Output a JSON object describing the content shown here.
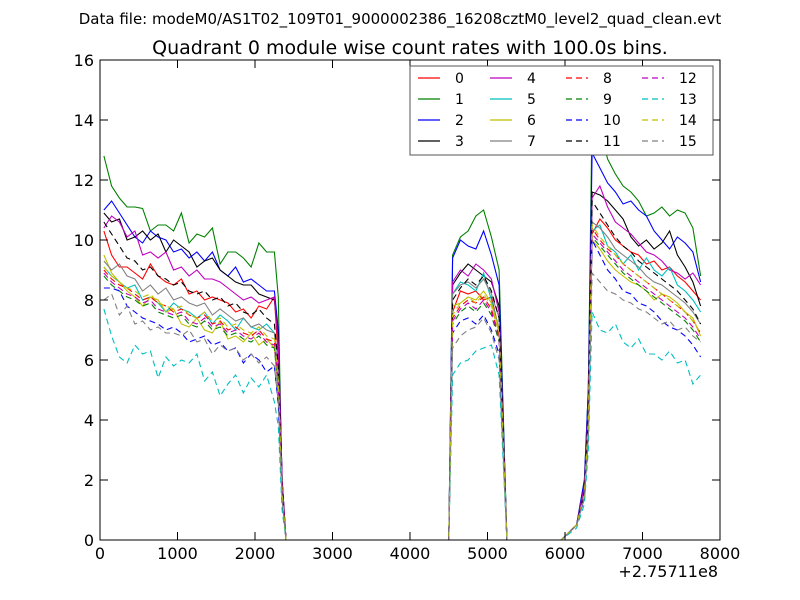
{
  "figure": {
    "suptitle": "Data file: modeM0/AS1T02_109T01_9000002386_16208cztM0_level2_quad_clean.evt"
  },
  "chart_data": {
    "type": "line",
    "title": "Quadrant 0 module wise count rates with 100.0s bins.",
    "xlabel": "",
    "ylabel": "",
    "x_offset_label": "+2.75711e8",
    "xlim": [
      0,
      8000
    ],
    "ylim": [
      0,
      16
    ],
    "xticks": [
      0,
      1000,
      2000,
      3000,
      4000,
      5000,
      6000,
      7000,
      8000
    ],
    "yticks": [
      0,
      2,
      4,
      6,
      8,
      10,
      12,
      14,
      16
    ],
    "legend_position": "top-right",
    "legend_columns": 4,
    "x": [
      50,
      150,
      250,
      350,
      450,
      550,
      650,
      750,
      850,
      950,
      1050,
      1150,
      1250,
      1350,
      1450,
      1550,
      1650,
      1750,
      1850,
      1950,
      2050,
      2150,
      2250,
      2300,
      2350,
      2400,
      2500,
      2700,
      2900,
      3100,
      3300,
      3500,
      3700,
      3900,
      4100,
      4300,
      4450,
      4500,
      4550,
      4650,
      4750,
      4850,
      4950,
      5050,
      5150,
      5250,
      5350,
      5550,
      5750,
      5950,
      6150,
      6250,
      6300,
      6350,
      6450,
      6550,
      6650,
      6750,
      6850,
      6950,
      7050,
      7150,
      7250,
      7350,
      7450,
      7550,
      7650,
      7750
    ],
    "series": [
      {
        "name": "0",
        "color": "#ff0000",
        "dash": "solid",
        "values": [
          10.3,
          9.5,
          9.1,
          9.1,
          8.9,
          8.7,
          9.2,
          8.8,
          8.6,
          8.5,
          8.7,
          8.2,
          8.3,
          8.0,
          8.1,
          8.0,
          7.9,
          7.6,
          7.7,
          7.4,
          7.8,
          7.7,
          8.1,
          6.0,
          2.0,
          0,
          0,
          0,
          0,
          0,
          0,
          0,
          0,
          0,
          0,
          0,
          0,
          0,
          7.6,
          8.3,
          8.2,
          8.3,
          8.0,
          8.1,
          7.0,
          0,
          0,
          0,
          0,
          0,
          0.5,
          1.5,
          4.0,
          10.2,
          10.7,
          10.4,
          10.0,
          9.8,
          9.6,
          9.5,
          9.2,
          9.3,
          9.0,
          9.1,
          8.8,
          8.6,
          8.3,
          8.0
        ]
      },
      {
        "name": "1",
        "color": "#008000",
        "dash": "solid",
        "values": [
          12.8,
          11.8,
          11.4,
          11.1,
          11.1,
          11.05,
          10.3,
          10.5,
          10.5,
          10.3,
          10.9,
          9.9,
          10.2,
          10.1,
          10.4,
          9.2,
          9.6,
          9.6,
          9.4,
          9.1,
          9.9,
          9.6,
          9.6,
          8.1,
          1.5,
          0,
          0,
          0,
          0,
          0,
          0,
          0,
          0,
          0,
          0,
          0,
          0,
          0,
          9.5,
          10.1,
          10.3,
          10.8,
          11.0,
          10.1,
          9.0,
          0,
          0,
          0,
          0,
          0,
          0.5,
          2.0,
          5.0,
          14.2,
          13.7,
          12.7,
          12.2,
          11.8,
          11.6,
          11.3,
          10.8,
          10.9,
          11.1,
          10.8,
          11.0,
          10.9,
          10.4,
          8.8
        ]
      },
      {
        "name": "2",
        "color": "#0000ff",
        "dash": "solid",
        "values": [
          11.0,
          11.3,
          10.9,
          10.5,
          10.1,
          9.9,
          10.3,
          10.1,
          10.0,
          9.6,
          9.7,
          9.4,
          9.6,
          9.3,
          9.6,
          9.0,
          8.8,
          9.1,
          8.6,
          8.7,
          8.5,
          8.3,
          8.3,
          7.0,
          2.0,
          0,
          0,
          0,
          0,
          0,
          0,
          0,
          0,
          0,
          0,
          0,
          0,
          0,
          9.4,
          10.0,
          9.8,
          9.7,
          10.3,
          9.5,
          8.5,
          0,
          0,
          0,
          0,
          0,
          0.5,
          2.0,
          5.0,
          12.9,
          12.4,
          11.9,
          11.6,
          11.2,
          11.3,
          11.0,
          10.8,
          10.3,
          10.0,
          9.7,
          10.1,
          9.9,
          9.6,
          8.6
        ]
      },
      {
        "name": "3",
        "color": "#000000",
        "dash": "solid",
        "values": [
          10.9,
          10.6,
          10.7,
          10.0,
          10.1,
          10.3,
          10.0,
          10.2,
          9.6,
          10.0,
          9.8,
          9.6,
          9.1,
          9.3,
          9.4,
          9.0,
          8.8,
          8.6,
          8.5,
          8.5,
          8.2,
          8.1,
          8.0,
          6.8,
          2.0,
          0,
          0,
          0,
          0,
          0,
          0,
          0,
          0,
          0,
          0,
          0,
          0,
          0,
          8.5,
          8.9,
          9.2,
          9.0,
          8.8,
          8.6,
          7.8,
          0,
          0,
          0,
          0,
          0,
          0.5,
          1.8,
          4.5,
          11.6,
          11.5,
          11.3,
          11.0,
          10.7,
          10.1,
          9.8,
          10.0,
          9.7,
          9.9,
          10.3,
          9.5,
          9.1,
          8.6,
          7.8
        ]
      },
      {
        "name": "4",
        "color": "#bf00bf",
        "dash": "solid",
        "values": [
          10.4,
          10.8,
          10.6,
          10.1,
          10.3,
          9.5,
          9.6,
          9.4,
          9.6,
          9.0,
          9.1,
          8.8,
          9.0,
          8.7,
          8.7,
          8.6,
          8.4,
          8.2,
          8.0,
          8.1,
          7.9,
          8.0,
          8.1,
          6.5,
          2.0,
          0,
          0,
          0,
          0,
          0,
          0,
          0,
          0,
          0,
          0,
          0,
          0,
          0,
          8.6,
          9.0,
          8.8,
          9.2,
          9.0,
          8.7,
          7.6,
          0,
          0,
          0,
          0,
          0,
          0.5,
          1.8,
          4.5,
          11.4,
          11.8,
          11.1,
          10.6,
          10.4,
          10.2,
          9.9,
          9.6,
          9.5,
          9.3,
          9.0,
          8.9,
          8.7,
          8.9,
          8.5
        ]
      },
      {
        "name": "5",
        "color": "#00bfbf",
        "dash": "solid",
        "values": [
          9.1,
          8.8,
          8.6,
          8.4,
          8.5,
          8.0,
          8.1,
          7.9,
          7.6,
          7.9,
          7.7,
          7.6,
          7.4,
          7.6,
          7.2,
          7.5,
          7.3,
          7.0,
          7.4,
          7.1,
          7.0,
          7.2,
          6.9,
          5.5,
          1.5,
          0,
          0,
          0,
          0,
          0,
          0,
          0,
          0,
          0,
          0,
          0,
          0,
          0,
          8.2,
          8.6,
          8.5,
          8.3,
          8.9,
          8.0,
          7.0,
          0,
          0,
          0,
          0,
          0,
          0.5,
          1.5,
          4.0,
          10.3,
          10.5,
          9.8,
          9.6,
          9.2,
          9.5,
          9.0,
          9.4,
          9.0,
          8.8,
          9.1,
          8.5,
          8.3,
          8.0,
          7.6
        ]
      },
      {
        "name": "6",
        "color": "#bfbf00",
        "dash": "solid",
        "values": [
          9.5,
          8.9,
          8.6,
          8.3,
          8.1,
          7.8,
          8.1,
          8.0,
          7.6,
          7.7,
          7.2,
          7.1,
          7.4,
          7.0,
          6.9,
          7.3,
          6.7,
          6.8,
          6.6,
          6.9,
          6.5,
          6.7,
          6.4,
          5.0,
          1.5,
          0,
          0,
          0,
          0,
          0,
          0,
          0,
          0,
          0,
          0,
          0,
          0,
          0,
          7.8,
          7.9,
          8.1,
          8.0,
          8.3,
          7.9,
          7.0,
          0,
          0,
          0,
          0,
          0,
          0.5,
          1.5,
          3.8,
          10.0,
          9.7,
          9.3,
          9.0,
          8.8,
          8.6,
          8.5,
          8.3,
          8.0,
          8.2,
          8.1,
          7.9,
          7.6,
          7.4,
          6.8
        ]
      },
      {
        "name": "7",
        "color": "#808080",
        "dash": "solid",
        "values": [
          9.3,
          9.0,
          9.2,
          8.8,
          8.7,
          8.3,
          8.5,
          8.2,
          8.4,
          8.0,
          8.1,
          7.9,
          7.8,
          7.9,
          7.5,
          7.7,
          7.5,
          7.3,
          7.4,
          7.1,
          7.2,
          7.0,
          6.9,
          5.5,
          1.5,
          0,
          0,
          0,
          0,
          0,
          0,
          0,
          0,
          0,
          0,
          0,
          0,
          0,
          8.2,
          8.5,
          8.6,
          8.4,
          8.7,
          8.2,
          7.4,
          0,
          0,
          0,
          0,
          0,
          0.5,
          1.6,
          4.2,
          10.6,
          10.4,
          10.1,
          9.7,
          9.5,
          9.3,
          9.1,
          8.8,
          8.6,
          8.5,
          8.3,
          8.1,
          7.9,
          7.6,
          7.2
        ]
      },
      {
        "name": "8",
        "color": "#ff0000",
        "dash": "dashed",
        "values": [
          9.0,
          8.7,
          8.5,
          8.4,
          8.2,
          8.0,
          8.1,
          7.9,
          7.8,
          7.6,
          7.7,
          7.5,
          7.4,
          7.5,
          7.2,
          7.3,
          7.0,
          7.1,
          6.9,
          6.8,
          7.0,
          6.7,
          6.6,
          5.2,
          1.5,
          0,
          0,
          0,
          0,
          0,
          0,
          0,
          0,
          0,
          0,
          0,
          0,
          0,
          7.4,
          7.8,
          8.0,
          7.9,
          8.1,
          7.7,
          6.8,
          0,
          0,
          0,
          0,
          0,
          0.5,
          1.5,
          3.8,
          10.4,
          10.0,
          9.7,
          9.5,
          9.2,
          9.0,
          8.8,
          8.6,
          8.4,
          8.2,
          8.0,
          7.8,
          7.6,
          7.3,
          6.9
        ]
      },
      {
        "name": "9",
        "color": "#008000",
        "dash": "dashed",
        "values": [
          8.8,
          8.5,
          8.3,
          8.1,
          8.0,
          7.8,
          7.9,
          7.6,
          7.5,
          7.4,
          7.5,
          7.2,
          7.1,
          7.3,
          7.0,
          7.1,
          6.8,
          6.9,
          6.7,
          6.6,
          6.8,
          6.5,
          6.4,
          5.0,
          1.5,
          0,
          0,
          0,
          0,
          0,
          0,
          0,
          0,
          0,
          0,
          0,
          0,
          0,
          7.2,
          7.6,
          7.8,
          7.6,
          7.9,
          7.5,
          6.6,
          0,
          0,
          0,
          0,
          0,
          0.5,
          1.4,
          3.6,
          10.1,
          9.8,
          9.5,
          9.2,
          8.9,
          8.7,
          8.5,
          8.3,
          8.1,
          7.9,
          7.7,
          7.5,
          7.3,
          7.0,
          6.6
        ]
      },
      {
        "name": "10",
        "color": "#0000ff",
        "dash": "dashed",
        "values": [
          8.4,
          8.4,
          8.3,
          7.8,
          7.6,
          7.4,
          7.3,
          7.2,
          7.0,
          7.1,
          6.9,
          6.6,
          6.7,
          6.8,
          6.5,
          6.6,
          6.3,
          6.4,
          5.9,
          6.2,
          6.0,
          5.6,
          5.8,
          4.5,
          1.5,
          0,
          0,
          0,
          0,
          0,
          0,
          0,
          0,
          0,
          0,
          0,
          0,
          0,
          6.9,
          7.3,
          7.4,
          7.2,
          7.5,
          7.0,
          6.2,
          0,
          0,
          0,
          0,
          0,
          0.5,
          1.4,
          3.5,
          10.0,
          9.5,
          9.0,
          8.7,
          8.3,
          8.2,
          7.9,
          7.8,
          7.6,
          7.3,
          7.1,
          7.0,
          6.8,
          6.5,
          6.1
        ]
      },
      {
        "name": "11",
        "color": "#000000",
        "dash": "dashed",
        "values": [
          10.6,
          10.2,
          9.8,
          9.4,
          9.3,
          9.0,
          9.1,
          8.8,
          8.7,
          8.5,
          8.6,
          8.3,
          8.2,
          8.3,
          8.0,
          8.1,
          7.8,
          7.9,
          7.6,
          7.5,
          7.7,
          7.4,
          7.2,
          5.8,
          1.8,
          0,
          0,
          0,
          0,
          0,
          0,
          0,
          0,
          0,
          0,
          0,
          0,
          0,
          8.0,
          8.4,
          8.7,
          8.5,
          8.8,
          8.3,
          7.4,
          0,
          0,
          0,
          0,
          0,
          0.5,
          1.6,
          4.2,
          11.3,
          10.9,
          10.5,
          10.1,
          9.8,
          9.6,
          9.3,
          9.1,
          8.9,
          8.7,
          8.5,
          8.3,
          8.0,
          7.7,
          7.2
        ]
      },
      {
        "name": "12",
        "color": "#bf00bf",
        "dash": "dashed",
        "values": [
          8.9,
          8.6,
          8.4,
          8.2,
          8.1,
          7.9,
          8.0,
          7.7,
          7.6,
          7.5,
          7.6,
          7.3,
          7.2,
          7.4,
          7.1,
          7.2,
          6.9,
          7.0,
          6.8,
          6.7,
          6.9,
          6.6,
          6.5,
          5.1,
          1.5,
          0,
          0,
          0,
          0,
          0,
          0,
          0,
          0,
          0,
          0,
          0,
          0,
          0,
          7.3,
          7.7,
          7.9,
          7.7,
          8.0,
          7.6,
          6.7,
          0,
          0,
          0,
          0,
          0,
          0.5,
          1.5,
          3.7,
          10.2,
          9.9,
          9.6,
          9.3,
          9.0,
          8.8,
          8.6,
          8.4,
          8.2,
          8.0,
          7.8,
          7.6,
          7.4,
          7.1,
          6.7
        ]
      },
      {
        "name": "13",
        "color": "#00bfbf",
        "dash": "dashed",
        "values": [
          7.7,
          6.8,
          6.1,
          5.9,
          6.5,
          6.2,
          6.3,
          5.4,
          6.1,
          5.8,
          6.0,
          5.9,
          6.2,
          5.3,
          5.6,
          4.8,
          5.2,
          5.5,
          4.9,
          5.4,
          5.1,
          5.5,
          4.6,
          3.8,
          1.0,
          0,
          0,
          0,
          0,
          0,
          0,
          0,
          0,
          0,
          0,
          0,
          0,
          0,
          5.5,
          5.9,
          6.0,
          6.3,
          6.4,
          6.5,
          5.5,
          0,
          0,
          0,
          0,
          0,
          0.4,
          1.2,
          3.0,
          7.6,
          7.0,
          6.9,
          7.2,
          6.6,
          6.4,
          6.7,
          6.2,
          6.2,
          6.0,
          6.3,
          5.9,
          6.0,
          5.2,
          5.5
        ]
      },
      {
        "name": "14",
        "color": "#bfbf00",
        "dash": "dashed",
        "values": [
          9.1,
          8.8,
          8.6,
          8.4,
          8.3,
          8.1,
          8.2,
          7.9,
          7.8,
          7.7,
          7.8,
          7.5,
          7.4,
          7.6,
          7.3,
          7.4,
          7.1,
          7.2,
          7.0,
          6.9,
          7.1,
          6.8,
          6.7,
          5.3,
          1.6,
          0,
          0,
          0,
          0,
          0,
          0,
          0,
          0,
          0,
          0,
          0,
          0,
          0,
          7.5,
          7.9,
          8.1,
          7.9,
          8.2,
          7.8,
          6.9,
          0,
          0,
          0,
          0,
          0,
          0.5,
          1.5,
          3.8,
          10.5,
          10.1,
          9.8,
          9.5,
          9.2,
          9.0,
          8.8,
          8.6,
          8.4,
          8.2,
          8.0,
          7.8,
          7.6,
          7.3,
          6.9
        ]
      },
      {
        "name": "15",
        "color": "#808080",
        "dash": "dashed",
        "values": [
          8.0,
          8.2,
          7.5,
          7.8,
          7.2,
          7.3,
          7.0,
          7.1,
          6.9,
          6.9,
          6.8,
          7.0,
          6.6,
          6.7,
          6.2,
          6.5,
          6.3,
          6.4,
          6.0,
          6.2,
          5.9,
          6.1,
          5.8,
          4.6,
          1.3,
          0,
          0,
          0,
          0,
          0,
          0,
          0,
          0,
          0,
          0,
          0,
          0,
          0,
          6.4,
          6.8,
          7.0,
          7.1,
          7.4,
          6.9,
          6.0,
          0,
          0,
          0,
          0,
          0,
          0.5,
          1.4,
          3.4,
          8.9,
          8.6,
          8.3,
          8.2,
          8.0,
          7.9,
          7.7,
          7.6,
          7.4,
          7.2,
          7.3,
          7.0,
          7.1,
          6.8,
          6.6
        ]
      }
    ]
  }
}
